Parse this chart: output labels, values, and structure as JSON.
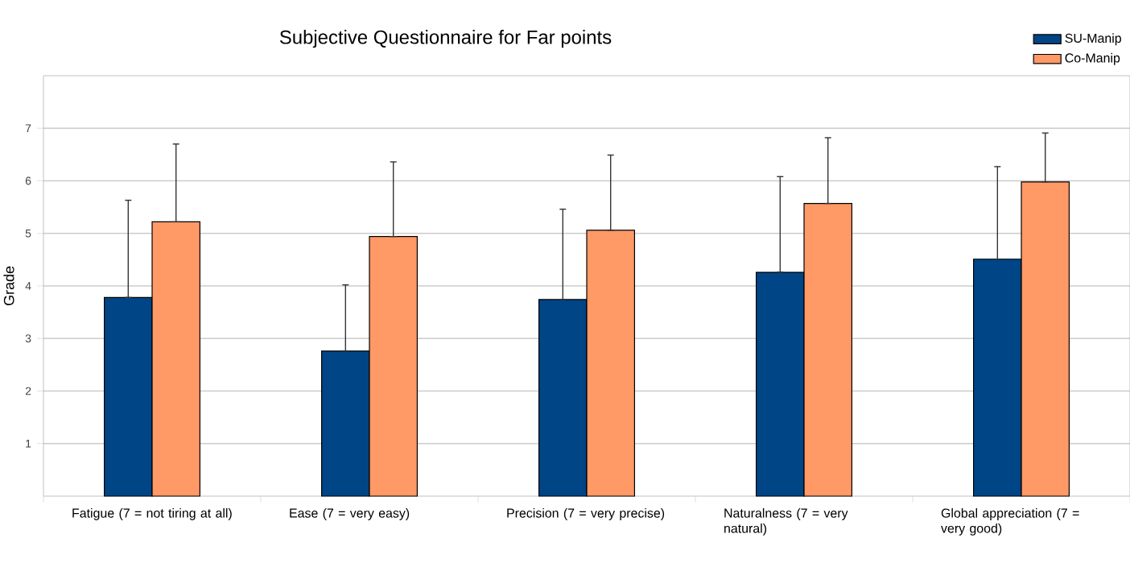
{
  "chart_data": {
    "type": "bar",
    "title": "Subjective Questionnaire for Far points",
    "ylabel": "Grade",
    "categories": [
      "Fatigue (7 = not tiring at all)",
      "Ease (7 = very easy)",
      "Precision (7 = very precise)",
      "Naturalness (7 = very natural)",
      "Global appreciation (7 = very good)"
    ],
    "series": [
      {
        "name": "SU-Manip",
        "color": "#004586",
        "values": [
          3.78,
          2.76,
          3.74,
          4.26,
          4.51
        ],
        "errors": [
          [
            3.78,
            5.63
          ],
          [
            2.76,
            4.02
          ],
          [
            3.74,
            5.46
          ],
          [
            4.26,
            6.08
          ],
          [
            4.51,
            6.27
          ]
        ]
      },
      {
        "name": "Co-Manip",
        "color": "#ff9966",
        "values": [
          5.22,
          4.94,
          5.06,
          5.57,
          5.98
        ],
        "errors": [
          [
            5.22,
            6.7
          ],
          [
            4.94,
            6.36
          ],
          [
            5.06,
            6.49
          ],
          [
            5.57,
            6.82
          ],
          [
            5.98,
            6.91
          ]
        ]
      }
    ],
    "ylim": [
      0,
      8
    ],
    "yticks": [
      1,
      2,
      3,
      4,
      5,
      6,
      7
    ],
    "grid": "y",
    "legend": "top right"
  }
}
